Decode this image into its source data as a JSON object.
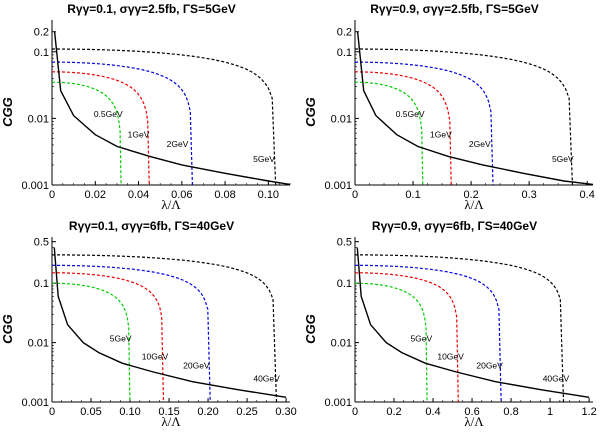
{
  "chart_data": [
    {
      "type": "line",
      "title": "Rγγ=0.1, σγγ=2.5fb, ΓS=5GeV",
      "xlabel": "λ/Λ",
      "ylabel": "CGG",
      "xlim": [
        0,
        0.11
      ],
      "ylim": [
        0.001,
        0.3
      ],
      "yscale": "log",
      "xticks": [
        "0",
        "0.02",
        "0.04",
        "0.06",
        "0.08",
        "0.10"
      ],
      "xtick_values": [
        0,
        0.02,
        0.04,
        0.06,
        0.08,
        0.1
      ],
      "yticks": [
        "0.001",
        "0.01",
        "0.1",
        "0.2"
      ],
      "ytick_values": [
        0.001,
        0.01,
        0.1,
        0.2
      ],
      "series": [
        {
          "name": "0.5GeV",
          "color": "#00cc00",
          "style": "dashed",
          "plateau": 0.035,
          "xend": 0.032,
          "label_x": 0.026,
          "label_y": 0.0105
        },
        {
          "name": "1GeV",
          "color": "#ee0000",
          "style": "dashed",
          "plateau": 0.05,
          "xend": 0.045,
          "label_x": 0.04,
          "label_y": 0.0052
        },
        {
          "name": "2GeV",
          "color": "#0000dd",
          "style": "dashed",
          "plateau": 0.07,
          "xend": 0.065,
          "label_x": 0.058,
          "label_y": 0.0037
        },
        {
          "name": "5GeV",
          "color": "#000000",
          "style": "dashed",
          "plateau": 0.11,
          "xend": 0.1035,
          "label_x": 0.098,
          "label_y": 0.0022
        },
        {
          "name": "",
          "color": "#000000",
          "style": "solid",
          "curve": "boundary",
          "x": [
            0.0012,
            0.004,
            0.01,
            0.02,
            0.03,
            0.045,
            0.06,
            0.08,
            0.1,
            0.11
          ],
          "y": [
            0.2,
            0.026,
            0.011,
            0.0057,
            0.0038,
            0.0027,
            0.002,
            0.0015,
            0.00115,
            0.00102
          ]
        }
      ]
    },
    {
      "type": "line",
      "title": "Rγγ=0.9, σγγ=2.5fb, ΓS=5GeV",
      "xlabel": "λ/Λ",
      "ylabel": "CGG",
      "xlim": [
        0,
        0.41
      ],
      "ylim": [
        0.001,
        0.3
      ],
      "yscale": "log",
      "xticks": [
        "0",
        "0.1",
        "0.2",
        "0.3",
        "0.4"
      ],
      "xtick_values": [
        0,
        0.1,
        0.2,
        0.3,
        0.4
      ],
      "yticks": [
        "0.001",
        "0.01",
        "0.1",
        "0.2"
      ],
      "ytick_values": [
        0.001,
        0.01,
        0.1,
        0.2
      ],
      "series": [
        {
          "name": "0.5GeV",
          "color": "#00cc00",
          "style": "dashed",
          "plateau": 0.035,
          "xend": 0.117,
          "label_x": 0.095,
          "label_y": 0.0105
        },
        {
          "name": "1GeV",
          "color": "#ee0000",
          "style": "dashed",
          "plateau": 0.05,
          "xend": 0.166,
          "label_x": 0.148,
          "label_y": 0.0052
        },
        {
          "name": "2GeV",
          "color": "#0000dd",
          "style": "dashed",
          "plateau": 0.07,
          "xend": 0.238,
          "label_x": 0.215,
          "label_y": 0.0037
        },
        {
          "name": "5GeV",
          "color": "#000000",
          "style": "dashed",
          "plateau": 0.11,
          "xend": 0.375,
          "label_x": 0.358,
          "label_y": 0.0022
        },
        {
          "name": "",
          "color": "#000000",
          "style": "solid",
          "curve": "boundary",
          "x": [
            0.0044,
            0.015,
            0.036,
            0.072,
            0.108,
            0.16,
            0.22,
            0.29,
            0.36,
            0.41
          ],
          "y": [
            0.2,
            0.026,
            0.011,
            0.0057,
            0.0038,
            0.0027,
            0.002,
            0.0015,
            0.00115,
            0.00102
          ]
        }
      ]
    },
    {
      "type": "line",
      "title": "Rγγ=0.1, σγγ=6fb, ΓS=40GeV",
      "xlabel": "λ/Λ",
      "ylabel": "CGG",
      "xlim": [
        0,
        0.305
      ],
      "ylim": [
        0.001,
        0.6
      ],
      "yscale": "log",
      "xticks": [
        "0",
        "0.05",
        "0.10",
        "0.15",
        "0.20",
        "0.25",
        "0.30"
      ],
      "xtick_values": [
        0,
        0.05,
        0.1,
        0.15,
        0.2,
        0.25,
        0.3
      ],
      "yticks": [
        "0.001",
        "0.01",
        "0.1",
        "0.5"
      ],
      "ytick_values": [
        0.001,
        0.01,
        0.1,
        0.5
      ],
      "series": [
        {
          "name": "5GeV",
          "color": "#00cc00",
          "style": "dashed",
          "plateau": 0.1,
          "xend": 0.1,
          "label_x": 0.088,
          "label_y": 0.0105
        },
        {
          "name": "10GeV",
          "color": "#ee0000",
          "style": "dashed",
          "plateau": 0.15,
          "xend": 0.143,
          "label_x": 0.132,
          "label_y": 0.0052
        },
        {
          "name": "20GeV",
          "color": "#0000dd",
          "style": "dashed",
          "plateau": 0.2,
          "xend": 0.203,
          "label_x": 0.185,
          "label_y": 0.0037
        },
        {
          "name": "40GeV",
          "color": "#000000",
          "style": "dashed",
          "plateau": 0.3,
          "xend": 0.288,
          "label_x": 0.275,
          "label_y": 0.0022
        },
        {
          "name": "",
          "color": "#000000",
          "style": "solid",
          "curve": "boundary",
          "x": [
            0.003,
            0.008,
            0.02,
            0.04,
            0.06,
            0.09,
            0.13,
            0.18,
            0.24,
            0.3
          ],
          "y": [
            0.4,
            0.06,
            0.02,
            0.01,
            0.0068,
            0.0045,
            0.0032,
            0.0022,
            0.0016,
            0.0012
          ]
        }
      ]
    },
    {
      "type": "line",
      "title": "Rγγ=0.9, σγγ=6fb, ΓS=40GeV",
      "xlabel": "λ/Λ",
      "ylabel": "CGG",
      "xlim": [
        0,
        1.22
      ],
      "ylim": [
        0.001,
        0.6
      ],
      "yscale": "log",
      "xticks": [
        "0",
        "0.2",
        "0.4",
        "0.6",
        "0.8",
        "1",
        "1.2"
      ],
      "xtick_values": [
        0,
        0.2,
        0.4,
        0.6,
        0.8,
        1,
        1.2
      ],
      "yticks": [
        "0.001",
        "0.01",
        "0.1",
        "0.5"
      ],
      "ytick_values": [
        0.001,
        0.01,
        0.1,
        0.5
      ],
      "series": [
        {
          "name": "5GeV",
          "color": "#00cc00",
          "style": "dashed",
          "plateau": 0.1,
          "xend": 0.37,
          "label_x": 0.34,
          "label_y": 0.0105
        },
        {
          "name": "10GeV",
          "color": "#ee0000",
          "style": "dashed",
          "plateau": 0.15,
          "xend": 0.53,
          "label_x": 0.49,
          "label_y": 0.0052
        },
        {
          "name": "20GeV",
          "color": "#0000dd",
          "style": "dashed",
          "plateau": 0.2,
          "xend": 0.75,
          "label_x": 0.69,
          "label_y": 0.0037
        },
        {
          "name": "40GeV",
          "color": "#000000",
          "style": "dashed",
          "plateau": 0.3,
          "xend": 1.07,
          "label_x": 1.03,
          "label_y": 0.0022
        },
        {
          "name": "",
          "color": "#000000",
          "style": "solid",
          "curve": "boundary",
          "x": [
            0.012,
            0.032,
            0.08,
            0.16,
            0.24,
            0.36,
            0.52,
            0.72,
            0.96,
            1.2
          ],
          "y": [
            0.4,
            0.06,
            0.02,
            0.01,
            0.0068,
            0.0045,
            0.0032,
            0.0022,
            0.0016,
            0.0012
          ]
        }
      ]
    }
  ]
}
